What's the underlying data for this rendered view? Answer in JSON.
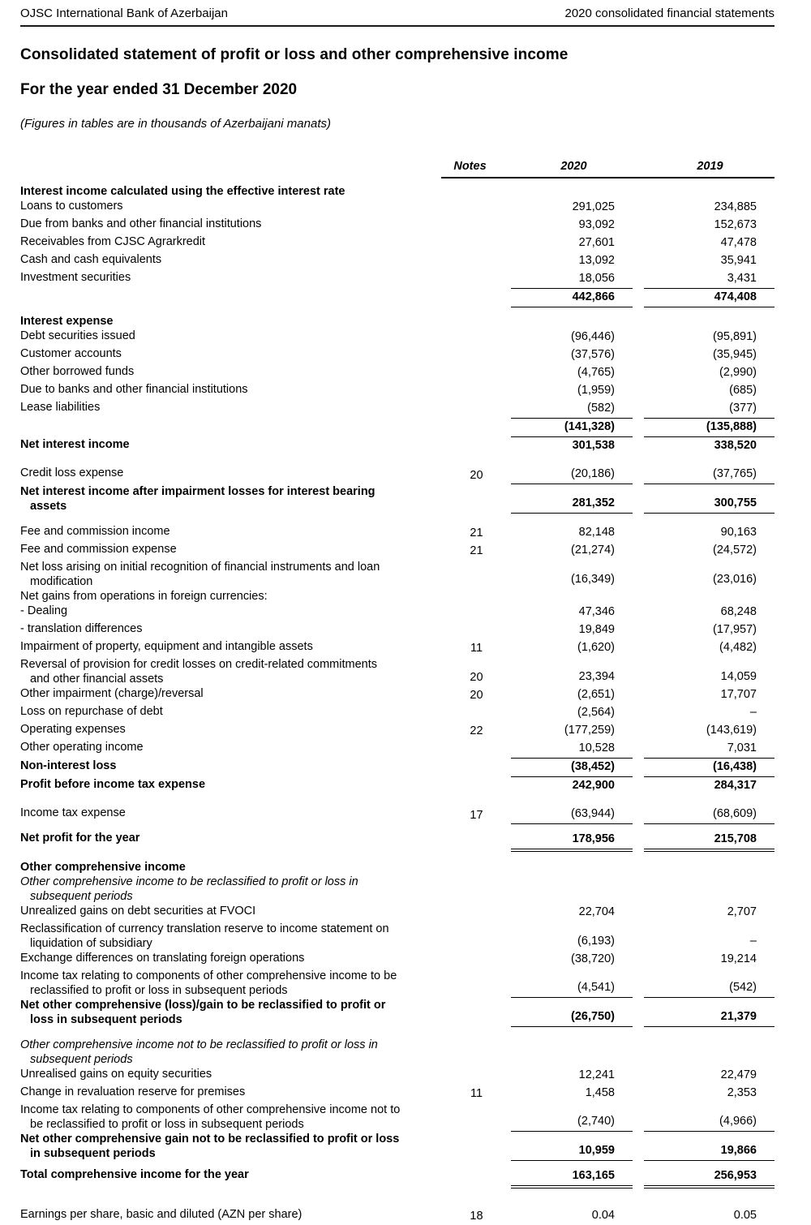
{
  "page_header": {
    "left": "OJSC International Bank of Azerbaijan",
    "right": "2020 consolidated financial statements"
  },
  "title": "Consolidated statement of profit or loss and other comprehensive income",
  "subtitle": "For the year ended 31 December 2020",
  "units_note": "(Figures in tables are in thousands of Azerbaijani manats)",
  "table": {
    "columns": {
      "notes": "Notes",
      "y2020": "2020",
      "y2019": "2019"
    },
    "rows": [
      {
        "label": "Interest income calculated using the effective interest rate",
        "style": "b"
      },
      {
        "label": "Loans to customers",
        "v2020": "291,025",
        "v2019": "234,885"
      },
      {
        "label": "Due from banks and other financial institutions",
        "v2020": "93,092",
        "v2019": "152,673"
      },
      {
        "label": "Receivables from CJSC Agrarkredit",
        "v2020": "27,601",
        "v2019": "47,478"
      },
      {
        "label": "Cash and cash equivalents",
        "v2020": "13,092",
        "v2019": "35,941"
      },
      {
        "label": "Investment securities",
        "v2020": "18,056",
        "v2019": "3,431",
        "rule": "s"
      },
      {
        "label": "",
        "v2020": "442,866",
        "v2019": "474,408",
        "style": "b",
        "rule": "s"
      },
      {
        "label": "Interest expense",
        "style": "b sp1"
      },
      {
        "label": "Debt securities issued",
        "v2020": "(96,446)",
        "v2019": "(95,891)"
      },
      {
        "label": "Customer accounts",
        "v2020": "(37,576)",
        "v2019": "(35,945)"
      },
      {
        "label": "Other borrowed funds",
        "v2020": "(4,765)",
        "v2019": "(2,990)"
      },
      {
        "label": "Due to banks and other financial institutions",
        "v2020": "(1,959)",
        "v2019": "(685)"
      },
      {
        "label": "Lease liabilities",
        "v2020": "(582)",
        "v2019": "(377)",
        "rule": "s"
      },
      {
        "label": "",
        "v2020": "(141,328)",
        "v2019": "(135,888)",
        "style": "b",
        "rule": "s"
      },
      {
        "label": "Net interest income",
        "v2020": "301,538",
        "v2019": "338,520",
        "style": "b"
      },
      {
        "label": "Credit loss expense",
        "note": "20",
        "v2020": "(20,186)",
        "v2019": "(37,765)",
        "rule": "s",
        "style": "sp2"
      },
      {
        "label": "Net interest income after impairment losses for interest bearing",
        "label2": "assets",
        "v2020": "281,352",
        "v2019": "300,755",
        "style": "b",
        "rule": "s"
      },
      {
        "label": "Fee and commission income",
        "note": "21",
        "v2020": "82,148",
        "v2019": "90,163",
        "style": "sp2"
      },
      {
        "label": "Fee and commission expense",
        "note": "21",
        "v2020": "(21,274)",
        "v2019": "(24,572)"
      },
      {
        "label": "Net loss arising on initial recognition of financial instruments and loan",
        "label2": "modification",
        "v2020": "(16,349)",
        "v2019": "(23,016)"
      },
      {
        "label": "Net gains from operations in foreign currencies:"
      },
      {
        "label": "- Dealing",
        "v2020": "47,346",
        "v2019": "68,248"
      },
      {
        "label": "- translation differences",
        "v2020": "19,849",
        "v2019": "(17,957)"
      },
      {
        "label": "Impairment of property, equipment and intangible assets",
        "note": "11",
        "v2020": "(1,620)",
        "v2019": "(4,482)"
      },
      {
        "label": "Reversal of provision for credit losses on credit-related commitments",
        "label2": "and other financial assets",
        "note": "20",
        "v2020": "23,394",
        "v2019": "14,059"
      },
      {
        "label": "Other impairment (charge)/reversal",
        "note": "20",
        "v2020": "(2,651)",
        "v2019": "17,707"
      },
      {
        "label": "Loss on repurchase of debt",
        "v2020": "(2,564)",
        "v2019": "–"
      },
      {
        "label": "Operating expenses",
        "note": "22",
        "v2020": "(177,259)",
        "v2019": "(143,619)"
      },
      {
        "label": "Other operating income",
        "v2020": "10,528",
        "v2019": "7,031",
        "rule": "s"
      },
      {
        "label": "Non-interest loss",
        "v2020": "(38,452)",
        "v2019": "(16,438)",
        "style": "b",
        "rule": "s"
      },
      {
        "label": "Profit before income tax expense",
        "v2020": "242,900",
        "v2019": "284,317",
        "style": "b"
      },
      {
        "label": "Income tax expense",
        "note": "17",
        "v2020": "(63,944)",
        "v2019": "(68,609)",
        "rule": "s",
        "style": "sp2"
      },
      {
        "label": "Net profit for the year",
        "v2020": "178,956",
        "v2019": "215,708",
        "style": "b sp1",
        "rule": "d"
      },
      {
        "label": "Other comprehensive income",
        "style": "b sp2"
      },
      {
        "label": "Other comprehensive income to be reclassified to profit or loss in",
        "label2": "subsequent periods",
        "style": "i"
      },
      {
        "label": "Unrealized gains on debt securities at FVOCI",
        "v2020": "22,704",
        "v2019": "2,707"
      },
      {
        "label": "Reclassification of currency translation reserve to income statement on",
        "label2": "liquidation of subsidiary",
        "v2020": "(6,193)",
        "v2019": "–"
      },
      {
        "label": "Exchange differences on translating foreign operations",
        "v2020": "(38,720)",
        "v2019": "19,214"
      },
      {
        "label": "Income tax relating to components of other comprehensive income to be",
        "label2": "reclassified to profit or loss in subsequent periods",
        "v2020": "(4,541)",
        "v2019": "(542)",
        "rule": "s"
      },
      {
        "label": "Net other comprehensive (loss)/gain to be reclassified to profit or",
        "label2": "loss in subsequent periods",
        "v2020": "(26,750)",
        "v2019": "21,379",
        "style": "b",
        "rule": "s"
      },
      {
        "label": "Other comprehensive income not to be reclassified to profit or loss in",
        "label2": "subsequent periods",
        "style": "i sp2"
      },
      {
        "label": "Unrealised gains on equity securities",
        "v2020": "12,241",
        "v2019": "22,479"
      },
      {
        "label": "Change in revaluation reserve for premises",
        "note": "11",
        "v2020": "1,458",
        "v2019": "2,353"
      },
      {
        "label": "Income tax relating to components of other comprehensive income not to",
        "label2": "be reclassified to profit or loss in subsequent periods",
        "v2020": "(2,740)",
        "v2019": "(4,966)",
        "rule": "s"
      },
      {
        "label": "Net other comprehensive gain not to be reclassified to profit or loss",
        "label2": "in subsequent periods",
        "v2020": "10,959",
        "v2019": "19,866",
        "style": "b",
        "rule": "s"
      },
      {
        "label": "Total comprehensive income for the year",
        "v2020": "163,165",
        "v2019": "256,953",
        "style": "b sp1",
        "rule": "d"
      },
      {
        "label": "Earnings per share, basic and diluted (AZN per share)",
        "note": "18",
        "v2020": "0.04",
        "v2019": "0.05",
        "style": "sp3"
      }
    ]
  }
}
